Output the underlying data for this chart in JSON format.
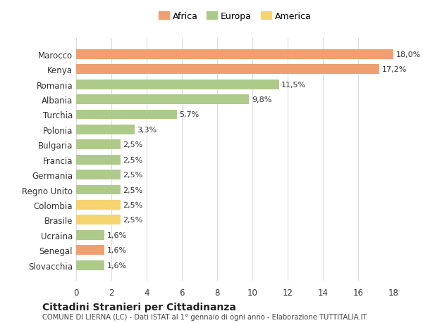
{
  "categories": [
    "Marocco",
    "Kenya",
    "Romania",
    "Albania",
    "Turchia",
    "Polonia",
    "Bulgaria",
    "Francia",
    "Germania",
    "Regno Unito",
    "Colombia",
    "Brasile",
    "Ucraina",
    "Senegal",
    "Slovacchia"
  ],
  "values": [
    18.0,
    17.2,
    11.5,
    9.8,
    5.7,
    3.3,
    2.5,
    2.5,
    2.5,
    2.5,
    2.5,
    2.5,
    1.6,
    1.6,
    1.6
  ],
  "continents": [
    "Africa",
    "Africa",
    "Europa",
    "Europa",
    "Europa",
    "Europa",
    "Europa",
    "Europa",
    "Europa",
    "Europa",
    "America",
    "America",
    "Europa",
    "Africa",
    "Europa"
  ],
  "colors": {
    "Africa": "#F0A070",
    "Europa": "#AECA8A",
    "America": "#F5D470"
  },
  "labels": [
    "18,0%",
    "17,2%",
    "11,5%",
    "9,8%",
    "5,7%",
    "3,3%",
    "2,5%",
    "2,5%",
    "2,5%",
    "2,5%",
    "2,5%",
    "2,5%",
    "1,6%",
    "1,6%",
    "1,6%"
  ],
  "title": "Cittadini Stranieri per Cittadinanza",
  "subtitle": "COMUNE DI LIERNA (LC) - Dati ISTAT al 1° gennaio di ogni anno - Elaborazione TUTTITALIA.IT",
  "xlim": [
    0,
    18
  ],
  "xticks": [
    0,
    2,
    4,
    6,
    8,
    10,
    12,
    14,
    16,
    18
  ],
  "legend_order": [
    "Africa",
    "Europa",
    "America"
  ],
  "background_color": "#ffffff"
}
